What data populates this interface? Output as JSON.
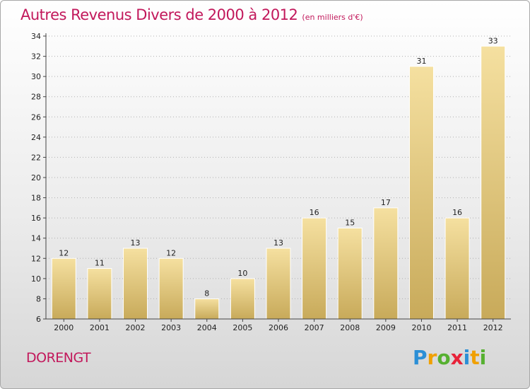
{
  "title": "Autres Revenus Divers de 2000 à 2012",
  "subtitle": "(en milliers d'€)",
  "commune": "DORENGT",
  "logo": {
    "text": "Proxiti",
    "letters": [
      "P",
      "r",
      "o",
      "x",
      "i",
      "t",
      "i"
    ],
    "colors": [
      "#2b8fd6",
      "#f0a000",
      "#56b030",
      "#e8233a",
      "#2b8fd6",
      "#f0a000",
      "#56b030"
    ]
  },
  "colors": {
    "bar_top": "#f5e0a0",
    "bar_bottom": "#c8aa5a",
    "title": "#c2185b",
    "grid": "#b0b0b0"
  },
  "chart_data": {
    "type": "bar",
    "title": "Autres Revenus Divers de 2000 à 2012",
    "xlabel": "",
    "ylabel": "",
    "categories": [
      "2000",
      "2001",
      "2002",
      "2003",
      "2004",
      "2005",
      "2006",
      "2007",
      "2008",
      "2009",
      "2010",
      "2011",
      "2012"
    ],
    "values": [
      12,
      11,
      13,
      12,
      8,
      10,
      13,
      16,
      15,
      17,
      31,
      16,
      33
    ],
    "ylim": [
      6,
      34
    ],
    "yticks": [
      6,
      8,
      10,
      12,
      14,
      16,
      18,
      20,
      22,
      24,
      26,
      28,
      30,
      32,
      34
    ],
    "grid": "horizontal dashed"
  }
}
